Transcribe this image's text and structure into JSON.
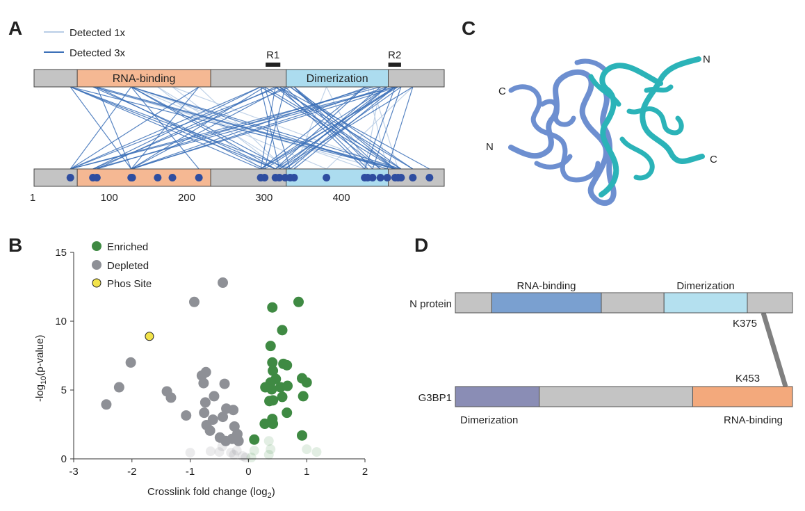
{
  "panels": {
    "a": "A",
    "b": "B",
    "c": "C",
    "d": "D"
  },
  "panel_a": {
    "legend": [
      {
        "label": "Detected 1x",
        "color": "#b9cde6"
      },
      {
        "label": "Detected 3x",
        "color": "#3a6fb7"
      }
    ],
    "length": 419,
    "regions": [
      {
        "label": "R1",
        "start": 237,
        "end": 252
      },
      {
        "label": "R2",
        "start": 362,
        "end": 375
      }
    ],
    "domains": [
      {
        "label": "RNA-binding",
        "start": 45,
        "end": 181,
        "color": "#f5b893"
      },
      {
        "label": "Dimerization",
        "start": 258,
        "end": 362,
        "color": "#acdcef"
      }
    ],
    "background_color": "#c4c4c4",
    "ticks": [
      "1",
      "100",
      "200",
      "300",
      "400"
    ],
    "sites": [
      38,
      61,
      65,
      100,
      101,
      127,
      142,
      169,
      232,
      236,
      247,
      251,
      257,
      262,
      266,
      299,
      338,
      341,
      346,
      354,
      361,
      369,
      372,
      375,
      387,
      404
    ],
    "site_color": "#2e4da0",
    "crosslinks": [
      [
        38,
        232,
        3
      ],
      [
        38,
        262,
        3
      ],
      [
        38,
        369,
        3
      ],
      [
        38,
        100,
        3
      ],
      [
        38,
        247,
        3
      ],
      [
        61,
        247,
        3
      ],
      [
        61,
        369,
        3
      ],
      [
        61,
        354,
        1
      ],
      [
        65,
        236,
        3
      ],
      [
        65,
        372,
        3
      ],
      [
        65,
        100,
        3
      ],
      [
        100,
        38,
        3
      ],
      [
        100,
        169,
        3
      ],
      [
        100,
        247,
        3
      ],
      [
        100,
        361,
        3
      ],
      [
        100,
        375,
        3
      ],
      [
        100,
        257,
        3
      ],
      [
        101,
        338,
        1
      ],
      [
        127,
        262,
        1
      ],
      [
        142,
        251,
        1
      ],
      [
        169,
        100,
        3
      ],
      [
        169,
        38,
        3
      ],
      [
        169,
        257,
        1
      ],
      [
        232,
        38,
        3
      ],
      [
        232,
        61,
        3
      ],
      [
        232,
        369,
        3
      ],
      [
        236,
        100,
        3
      ],
      [
        236,
        375,
        3
      ],
      [
        247,
        65,
        3
      ],
      [
        247,
        387,
        3
      ],
      [
        247,
        354,
        3
      ],
      [
        251,
        38,
        3
      ],
      [
        251,
        338,
        3
      ],
      [
        251,
        404,
        3
      ],
      [
        257,
        100,
        3
      ],
      [
        257,
        341,
        3
      ],
      [
        262,
        61,
        3
      ],
      [
        262,
        375,
        3
      ],
      [
        266,
        369,
        3
      ],
      [
        266,
        346,
        3
      ],
      [
        232,
        251,
        3
      ],
      [
        236,
        262,
        3
      ],
      [
        247,
        232,
        3
      ],
      [
        257,
        236,
        3
      ],
      [
        299,
        266,
        1
      ],
      [
        299,
        341,
        1
      ],
      [
        338,
        232,
        3
      ],
      [
        338,
        247,
        3
      ],
      [
        341,
        100,
        3
      ],
      [
        346,
        65,
        3
      ],
      [
        354,
        38,
        3
      ],
      [
        354,
        257,
        3
      ],
      [
        361,
        101,
        3
      ],
      [
        361,
        232,
        3
      ],
      [
        361,
        251,
        3
      ],
      [
        361,
        262,
        3
      ],
      [
        369,
        38,
        3
      ],
      [
        369,
        61,
        3
      ],
      [
        369,
        236,
        3
      ],
      [
        369,
        247,
        3
      ],
      [
        369,
        266,
        3
      ],
      [
        369,
        338,
        3
      ],
      [
        372,
        100,
        3
      ],
      [
        372,
        232,
        3
      ],
      [
        375,
        257,
        3
      ],
      [
        375,
        346,
        3
      ],
      [
        387,
        251,
        3
      ],
      [
        387,
        361,
        3
      ],
      [
        387,
        299,
        1
      ],
      [
        354,
        338,
        1
      ],
      [
        341,
        361,
        1
      ],
      [
        346,
        372,
        1
      ],
      [
        127,
        232,
        1
      ],
      [
        142,
        369,
        1
      ],
      [
        101,
        299,
        1
      ],
      [
        262,
        387,
        3
      ],
      [
        266,
        354,
        3
      ],
      [
        251,
        369,
        3
      ]
    ]
  },
  "panel_b": {
    "chart_data": {
      "type": "scatter",
      "xlabel": "Crosslink fold change (log",
      "xlabel_sub": "2",
      "xlabel_end": ")",
      "ylabel": "-log",
      "ylabel_sub": "10",
      "ylabel_end": "(p-value)",
      "xlim": [
        -3,
        2
      ],
      "ylim": [
        0,
        15
      ],
      "xticks": [
        "-3",
        "-2",
        "-1",
        "0",
        "1",
        "2"
      ],
      "yticks": [
        "0",
        "5",
        "10",
        "15"
      ],
      "grid": false,
      "legend_position": "top-left",
      "series": [
        {
          "name": "Enriched",
          "color": "#3f8a43",
          "points": [
            [
              0.86,
              11.4
            ],
            [
              0.41,
              11.0
            ],
            [
              0.58,
              9.35
            ],
            [
              0.38,
              8.2
            ],
            [
              0.41,
              7.0
            ],
            [
              0.6,
              6.9
            ],
            [
              0.66,
              6.8
            ],
            [
              0.42,
              6.4
            ],
            [
              0.47,
              5.8
            ],
            [
              0.38,
              5.55
            ],
            [
              0.29,
              5.2
            ],
            [
              0.4,
              5.05
            ],
            [
              0.55,
              5.2
            ],
            [
              0.67,
              5.3
            ],
            [
              0.92,
              5.85
            ],
            [
              1.0,
              5.55
            ],
            [
              0.94,
              4.55
            ],
            [
              0.58,
              4.5
            ],
            [
              0.36,
              4.2
            ],
            [
              0.42,
              4.25
            ],
            [
              0.66,
              3.35
            ],
            [
              0.41,
              2.9
            ],
            [
              0.28,
              2.55
            ],
            [
              0.42,
              2.55
            ],
            [
              0.92,
              1.7
            ],
            [
              0.1,
              1.4
            ]
          ]
        },
        {
          "name": "Depleted",
          "color": "#8e9096",
          "points": [
            [
              -0.44,
              12.8
            ],
            [
              -0.93,
              11.4
            ],
            [
              -2.02,
              7.0
            ],
            [
              -2.22,
              5.2
            ],
            [
              -2.44,
              3.95
            ],
            [
              -1.4,
              4.9
            ],
            [
              -1.33,
              4.45
            ],
            [
              -1.07,
              3.15
            ],
            [
              -0.8,
              6.05
            ],
            [
              -0.73,
              6.3
            ],
            [
              -0.77,
              5.5
            ],
            [
              -0.41,
              5.45
            ],
            [
              -0.59,
              4.55
            ],
            [
              -0.74,
              4.1
            ],
            [
              -0.76,
              3.35
            ],
            [
              -0.61,
              2.85
            ],
            [
              -0.72,
              2.45
            ],
            [
              -0.66,
              2.05
            ],
            [
              -0.44,
              3.05
            ],
            [
              -0.38,
              3.65
            ],
            [
              -0.26,
              3.55
            ],
            [
              -0.24,
              2.35
            ],
            [
              -0.19,
              1.8
            ],
            [
              -0.49,
              1.55
            ],
            [
              -0.39,
              1.3
            ],
            [
              -0.28,
              1.45
            ],
            [
              -0.17,
              1.3
            ]
          ]
        },
        {
          "name": "Phos Site",
          "color": "#f2e34a",
          "points": [
            [
              -1.7,
              8.9
            ]
          ]
        }
      ],
      "nonsignificant": {
        "depleted_side": [
          [
            -1.0,
            0.45
          ],
          [
            -0.65,
            0.55
          ],
          [
            -0.5,
            0.5
          ],
          [
            -0.3,
            0.45
          ],
          [
            -0.2,
            0.6
          ],
          [
            -0.1,
            0.2
          ],
          [
            -0.05,
            0.1
          ],
          [
            -0.45,
            0.9
          ],
          [
            -0.25,
            0.3
          ]
        ],
        "enriched_side": [
          [
            0.05,
            0.1
          ],
          [
            0.1,
            0.6
          ],
          [
            0.35,
            1.3
          ],
          [
            0.38,
            0.7
          ],
          [
            0.35,
            0.3
          ],
          [
            1.0,
            0.7
          ],
          [
            1.17,
            0.5
          ]
        ]
      }
    }
  },
  "panel_c": {
    "labels": [
      "C",
      "N",
      "N",
      "C"
    ],
    "chain_colors": [
      "#6d8fd0",
      "#2bb3b8"
    ]
  },
  "panel_d": {
    "proteins": [
      {
        "name": "N protein",
        "segments": [
          [
            "#c4c4c4",
            0,
            0.108
          ],
          [
            "#7aa0d0",
            0.108,
            0.433
          ],
          [
            "#c4c4c4",
            0.433,
            0.619
          ],
          [
            "#b4e0ef",
            0.619,
            0.866
          ],
          [
            "#c4c4c4",
            0.866,
            1
          ]
        ],
        "domain_labels": [
          "RNA-binding",
          "Dimerization"
        ],
        "site": "K375"
      },
      {
        "name": "G3BP1",
        "segments": [
          [
            "#8a8db5",
            0,
            0.249
          ],
          [
            "#c4c4c4",
            0.249,
            0.704
          ],
          [
            "#f3a97c",
            0.704,
            1
          ]
        ],
        "domain_labels": [
          "Dimerization",
          "RNA-binding"
        ],
        "site": "K453"
      }
    ],
    "link_color": "#808080"
  }
}
